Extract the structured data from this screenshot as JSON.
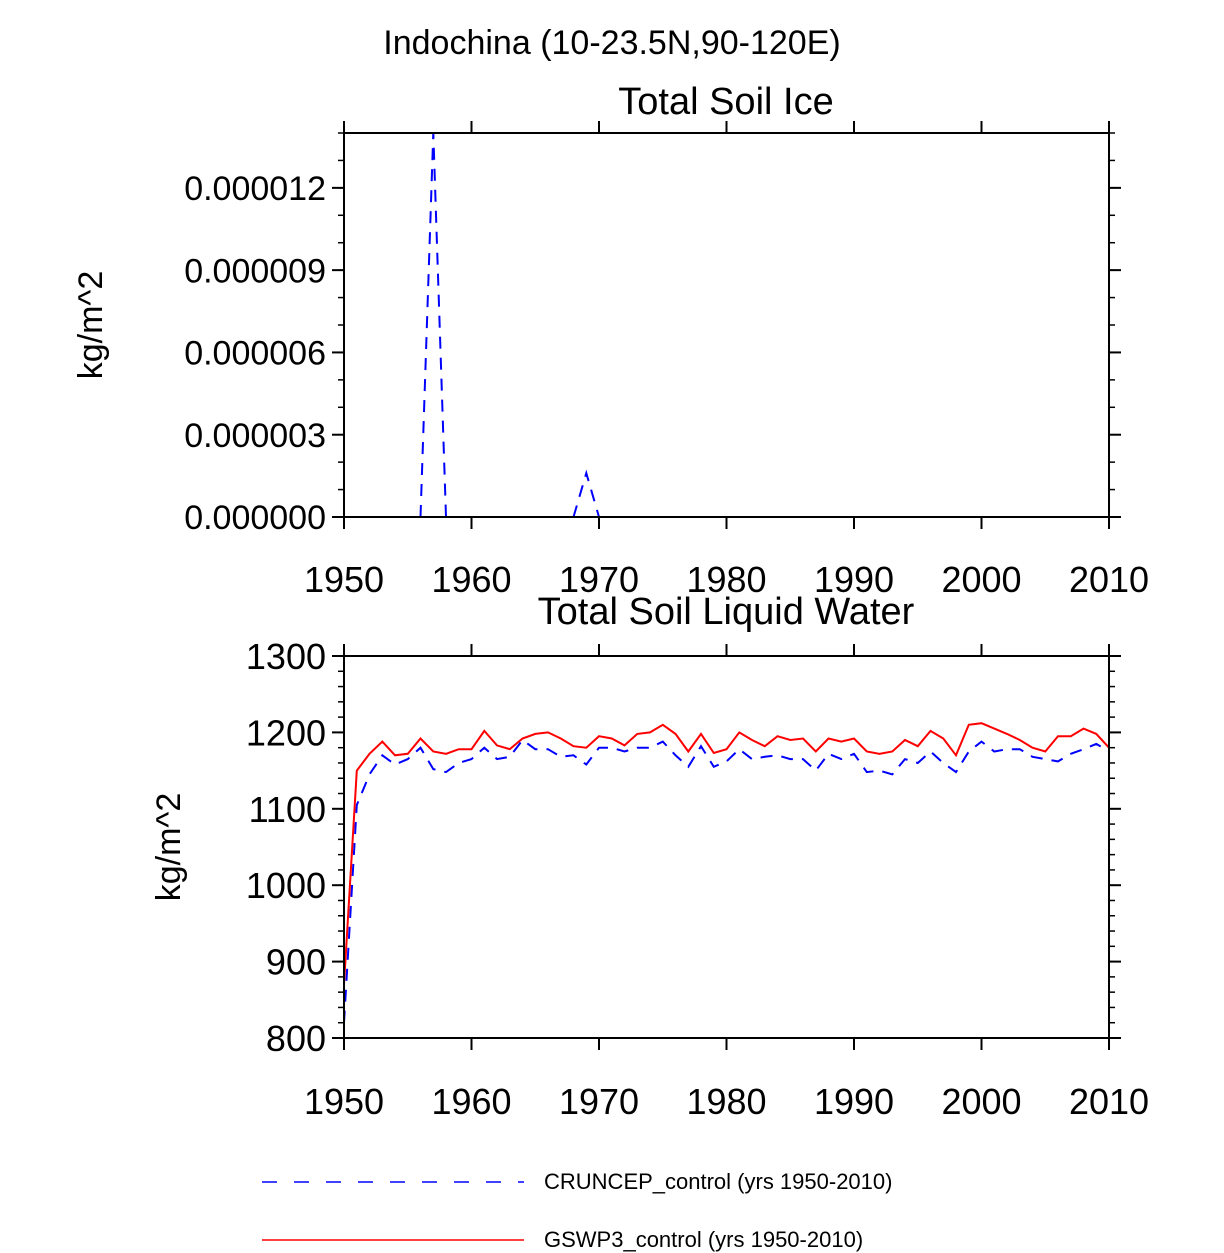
{
  "figure_title": "Indochina (10-23.5N,90-120E)",
  "legend": [
    {
      "label": "CRUNCEP_control (yrs 1950-2010)",
      "color": "#0000ff",
      "dash": "dashed"
    },
    {
      "label": "GSWP3_control (yrs 1950-2010)",
      "color": "#ff0000",
      "dash": "solid"
    }
  ],
  "chart_data": [
    {
      "type": "line",
      "title": "Total Soil Ice",
      "xlabel": "",
      "ylabel": "kg/m^2",
      "xlim": [
        1950,
        2010
      ],
      "ylim": [
        0,
        1.4e-05
      ],
      "x_ticks": [
        1950,
        1960,
        1970,
        1980,
        1990,
        2000,
        2010
      ],
      "x_tick_labels": [
        "1950",
        "1960",
        "1970",
        "1980",
        "1990",
        "2000",
        "2010"
      ],
      "y_ticks": [
        0,
        3e-06,
        6e-06,
        9e-06,
        1.2e-05
      ],
      "y_tick_labels": [
        "0.000000",
        "0.000003",
        "0.000006",
        "0.000009",
        "0.000012"
      ],
      "series": [
        {
          "name": "CRUNCEP_control (yrs 1950-2010)",
          "color": "#0000ff",
          "dash": "dashed",
          "x": [
            1956,
            1957,
            1958,
            1968,
            1969,
            1970
          ],
          "y": [
            0,
            1.4e-05,
            0,
            0,
            1.6e-06,
            0
          ],
          "segments": [
            [
              0,
              2
            ],
            [
              3,
              5
            ]
          ]
        }
      ]
    },
    {
      "type": "line",
      "title": "Total Soil Liquid Water",
      "xlabel": "",
      "ylabel": "kg/m^2",
      "xlim": [
        1950,
        2010
      ],
      "ylim": [
        800,
        1300
      ],
      "x_ticks": [
        1950,
        1960,
        1970,
        1980,
        1990,
        2000,
        2010
      ],
      "x_tick_labels": [
        "1950",
        "1960",
        "1970",
        "1980",
        "1990",
        "2000",
        "2010"
      ],
      "y_ticks": [
        800,
        900,
        1000,
        1100,
        1200,
        1300
      ],
      "y_tick_labels": [
        "800",
        "900",
        "1000",
        "1100",
        "1200",
        "1300"
      ],
      "series": [
        {
          "name": "CRUNCEP_control (yrs 1950-2010)",
          "color": "#0000ff",
          "dash": "dashed",
          "x": [
            1950,
            1951,
            1952,
            1953,
            1954,
            1955,
            1956,
            1957,
            1958,
            1959,
            1960,
            1961,
            1962,
            1963,
            1964,
            1965,
            1966,
            1967,
            1968,
            1969,
            1970,
            1971,
            1972,
            1973,
            1974,
            1975,
            1976,
            1977,
            1978,
            1979,
            1980,
            1981,
            1982,
            1983,
            1984,
            1985,
            1986,
            1987,
            1988,
            1989,
            1990,
            1991,
            1992,
            1993,
            1994,
            1995,
            1996,
            1997,
            1998,
            1999,
            2000,
            2001,
            2002,
            2003,
            2004,
            2005,
            2006,
            2007,
            2008,
            2009,
            2010
          ],
          "y": [
            820,
            1105,
            1145,
            1170,
            1158,
            1165,
            1180,
            1152,
            1148,
            1160,
            1165,
            1180,
            1165,
            1168,
            1190,
            1178,
            1178,
            1168,
            1170,
            1158,
            1180,
            1180,
            1175,
            1180,
            1180,
            1188,
            1170,
            1155,
            1182,
            1155,
            1162,
            1178,
            1165,
            1168,
            1170,
            1165,
            1165,
            1150,
            1172,
            1165,
            1172,
            1148,
            1150,
            1145,
            1165,
            1160,
            1175,
            1160,
            1148,
            1175,
            1188,
            1175,
            1178,
            1178,
            1168,
            1165,
            1162,
            1172,
            1178,
            1185,
            1175
          ]
        },
        {
          "name": "GSWP3_control (yrs 1950-2010)",
          "color": "#ff0000",
          "dash": "solid",
          "x": [
            1950,
            1951,
            1952,
            1953,
            1954,
            1955,
            1956,
            1957,
            1958,
            1959,
            1960,
            1961,
            1962,
            1963,
            1964,
            1965,
            1966,
            1967,
            1968,
            1969,
            1970,
            1971,
            1972,
            1973,
            1974,
            1975,
            1976,
            1977,
            1978,
            1979,
            1980,
            1981,
            1982,
            1983,
            1984,
            1985,
            1986,
            1987,
            1988,
            1989,
            1990,
            1991,
            1992,
            1993,
            1994,
            1995,
            1996,
            1997,
            1998,
            1999,
            2000,
            2001,
            2002,
            2003,
            2004,
            2005,
            2006,
            2007,
            2008,
            2009,
            2010
          ],
          "y": [
            870,
            1150,
            1172,
            1188,
            1170,
            1172,
            1192,
            1175,
            1172,
            1178,
            1178,
            1202,
            1183,
            1178,
            1192,
            1198,
            1200,
            1192,
            1182,
            1180,
            1195,
            1192,
            1183,
            1198,
            1200,
            1210,
            1198,
            1175,
            1198,
            1173,
            1178,
            1200,
            1190,
            1182,
            1195,
            1190,
            1192,
            1175,
            1192,
            1188,
            1192,
            1175,
            1172,
            1175,
            1190,
            1182,
            1202,
            1192,
            1170,
            1210,
            1212,
            1205,
            1198,
            1190,
            1180,
            1175,
            1195,
            1195,
            1205,
            1198,
            1180
          ]
        }
      ]
    }
  ]
}
